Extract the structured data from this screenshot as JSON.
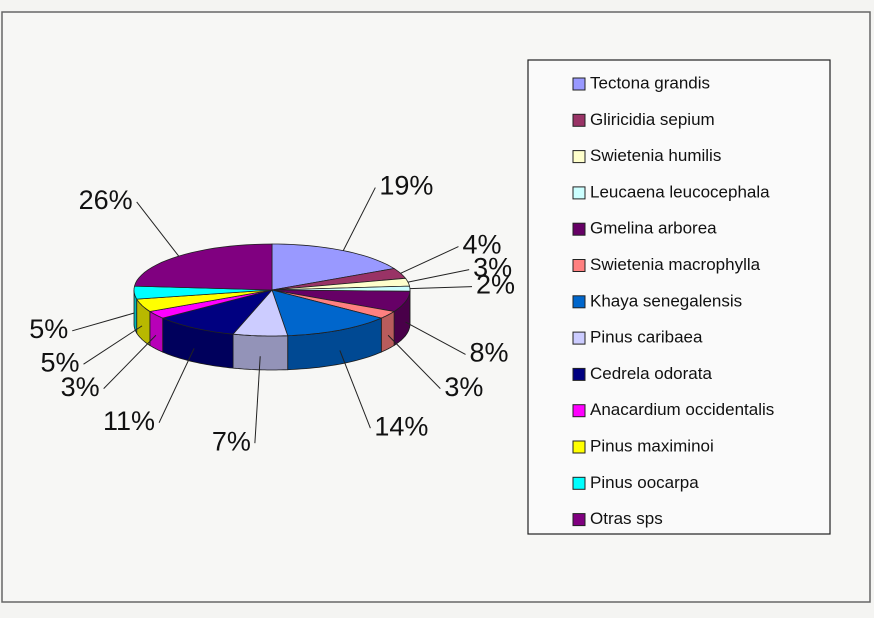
{
  "chart_data": {
    "type": "pie",
    "categories": [
      "Tectona grandis",
      "Gliricidia sepium",
      "Swietenia humilis",
      "Leucaena leucocephala",
      "Gmelina arborea",
      "Swietenia macrophylla",
      "Khaya senegalensis",
      "Pinus caribaea",
      "Cedrela odorata",
      "Anacardium occidentalis",
      "Pinus maximinoi",
      "Pinus oocarpa",
      "Otras sps"
    ],
    "values": [
      19,
      4,
      3,
      2,
      8,
      3,
      14,
      7,
      11,
      3,
      5,
      5,
      26
    ],
    "value_labels": [
      "19%",
      "4%",
      "3%",
      "2%",
      "8%",
      "3%",
      "14%",
      "7%",
      "11%",
      "3%",
      "5%",
      "5%",
      "26%"
    ],
    "colors": [
      "#9999ff",
      "#993366",
      "#ffffcc",
      "#ccffff",
      "#660066",
      "#ff8080",
      "#0066cc",
      "#ccccff",
      "#000080",
      "#ff00ff",
      "#ffff00",
      "#00ffff",
      "#800080"
    ],
    "legend": "right"
  }
}
